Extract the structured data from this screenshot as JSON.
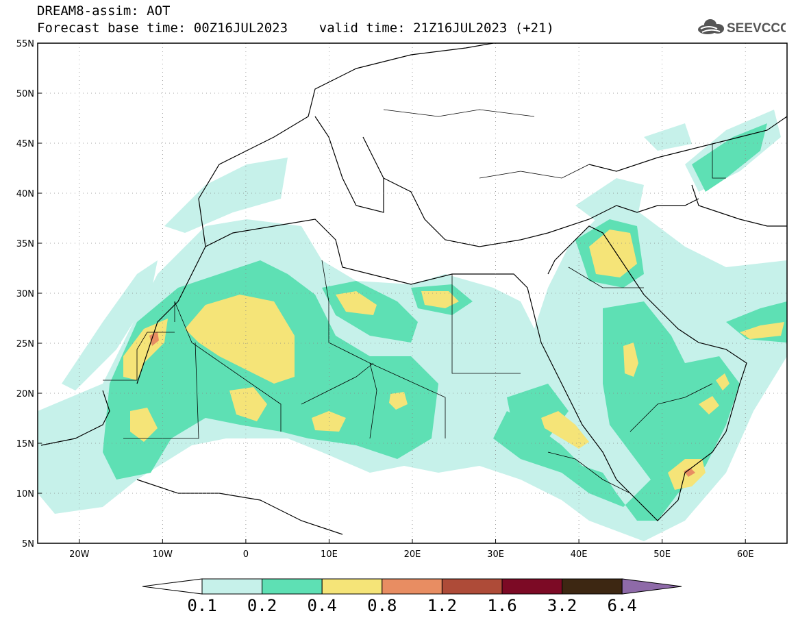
{
  "header": {
    "line1": "DREAM8-assim: AOT",
    "line2": "Forecast base time: 00Z16JUL2023    valid time: 21Z16JUL2023 (+21)"
  },
  "logo": {
    "text": "SEEVCCC",
    "icon": "cloud-icon"
  },
  "map": {
    "lat_range": [
      5,
      55
    ],
    "lon_range": [
      -25,
      65
    ],
    "lat_ticks": [
      "55N",
      "50N",
      "45N",
      "40N",
      "35N",
      "30N",
      "25N",
      "20N",
      "15N",
      "10N",
      "5N"
    ],
    "lon_ticks": [
      "20W",
      "10W",
      "0",
      "10E",
      "20E",
      "30E",
      "40E",
      "50E",
      "60E"
    ],
    "grid": "dotted"
  },
  "colorbar": {
    "labels": [
      "0.1",
      "0.2",
      "0.4",
      "0.8",
      "1.2",
      "1.6",
      "3.2",
      "6.4"
    ],
    "colors": [
      "#c6f1ea",
      "#5ee0b4",
      "#f5e478",
      "#e88d62",
      "#ae4b38",
      "#7c0a25",
      "#3d2712",
      "#8e6aa8"
    ],
    "under_color": "#ffffff"
  }
}
